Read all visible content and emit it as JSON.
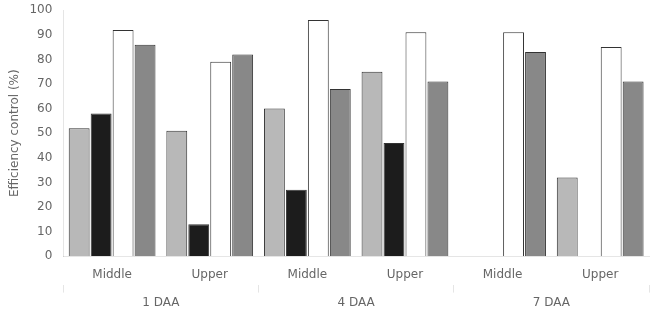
{
  "chart_data": {
    "type": "bar",
    "categories": [
      "Middle",
      "Upper",
      "Middle",
      "Upper",
      "Middle",
      "Upper"
    ],
    "group_labels": [
      "1 DAA",
      "4 DAA",
      "7 DAA"
    ],
    "series": [
      {
        "color": "#b8b8b8",
        "values": [
          52,
          51,
          60,
          75,
          0,
          32
        ]
      },
      {
        "color": "#1c1c1c",
        "values": [
          58,
          13,
          27,
          46,
          0,
          0
        ]
      },
      {
        "color": "#ffffff",
        "values": [
          92,
          79,
          96,
          91,
          91,
          85
        ]
      },
      {
        "color": "#888888",
        "values": [
          86,
          82,
          68,
          71,
          83,
          71
        ]
      }
    ],
    "ylabel": "Efficiency control (%)",
    "ylim": [
      0,
      100
    ],
    "yticks": [
      0,
      10,
      20,
      30,
      40,
      50,
      60,
      70,
      80,
      90,
      100
    ],
    "grid": false
  }
}
